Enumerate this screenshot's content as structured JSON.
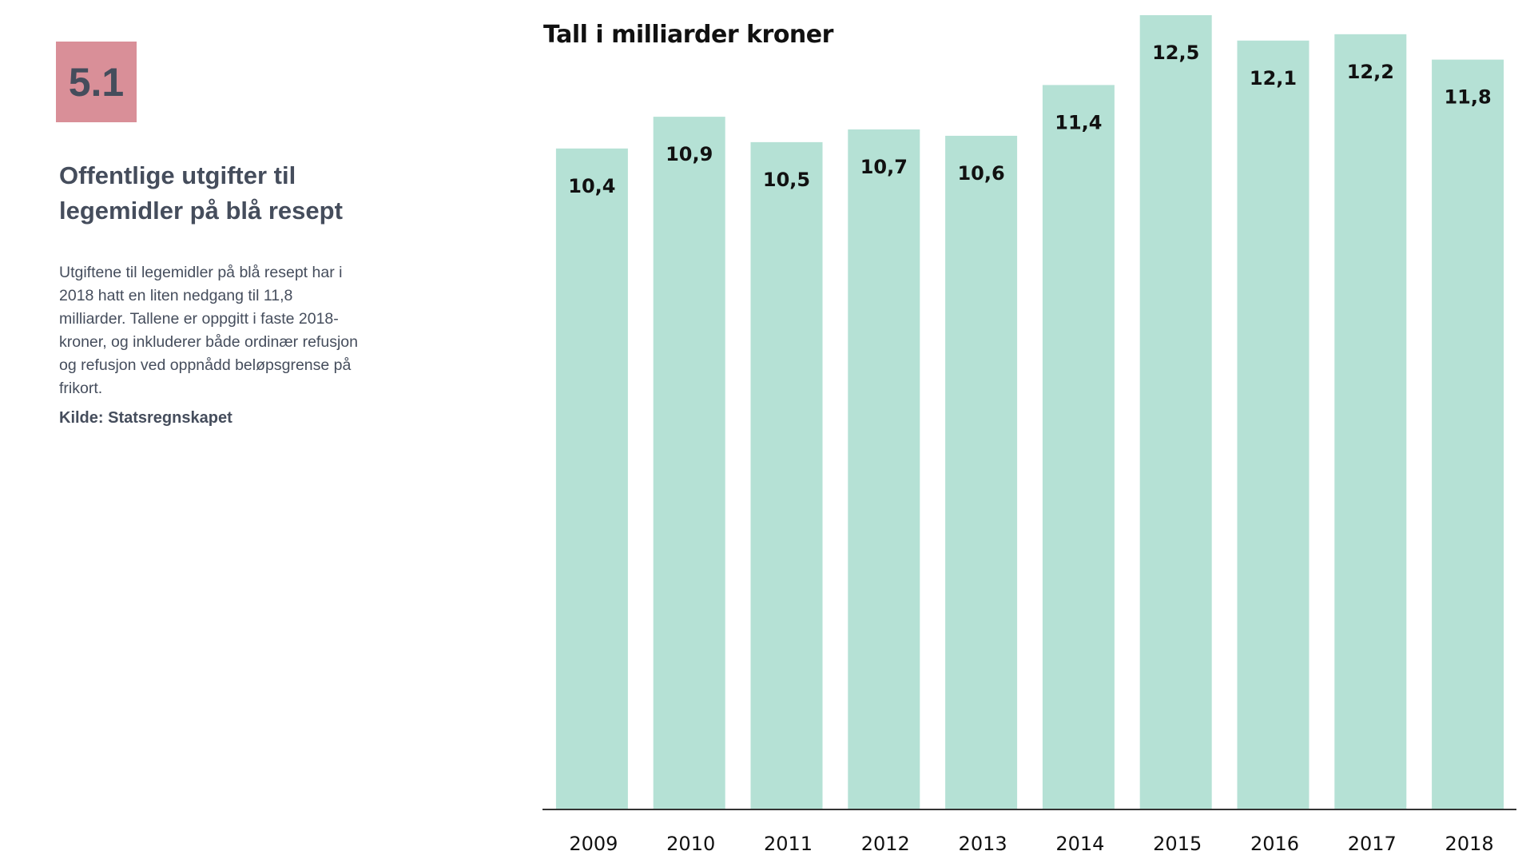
{
  "sidebar": {
    "badge": "5.1",
    "title": "Offentlige utgifter til legemidler på blå resept",
    "description": "Utgiftene til legemidler på blå resept har i 2018 hatt en liten nedgang til 11,8 milliarder. Tallene er oppgitt i faste 2018-kroner, og inkluderer både ordinær refusjon og refusjon ved oppnådd beløpsgrense på frikort.",
    "source": "Kilde: Statsregnskapet",
    "badge_color": "#d98f98",
    "text_color": "#454d5c"
  },
  "chart_data": {
    "type": "bar",
    "title": "Tall i milliarder kroner",
    "categories": [
      "2009",
      "2010",
      "2011",
      "2012",
      "2013",
      "2014",
      "2015",
      "2016",
      "2017",
      "2018"
    ],
    "values": [
      10.4,
      10.9,
      10.5,
      10.7,
      10.6,
      11.4,
      12.5,
      12.1,
      12.2,
      11.8
    ],
    "value_labels": [
      "10,4",
      "10,9",
      "10,5",
      "10,7",
      "10,6",
      "11,4",
      "12,5",
      "12,1",
      "12,2",
      "11,8"
    ],
    "bar_color": "#b5e1d5",
    "axis_color": "#333333",
    "ylim": [
      0,
      12.5
    ],
    "grid": false,
    "legend": "none"
  }
}
